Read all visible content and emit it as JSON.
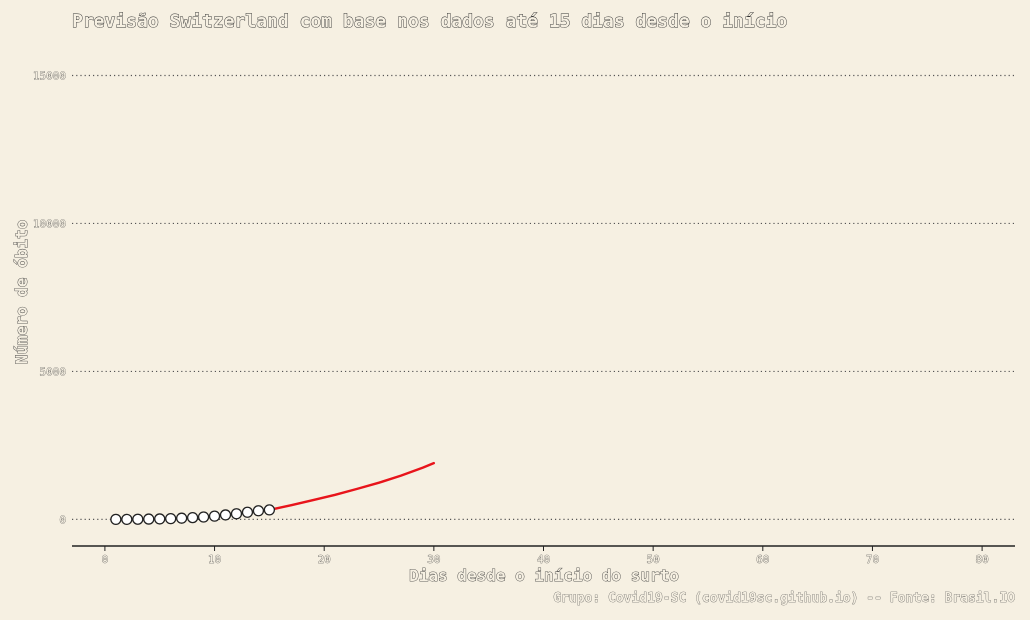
{
  "chart_data": {
    "type": "line",
    "title": "Previsão Switzerland com base nos dados até 15 dias desde o início",
    "xlabel": "Dias desde o início do surto",
    "ylabel": "Número de óbito",
    "caption": "Grupo: Covid19-SC (covid19sc.github.io) -- Fonte: Brasil.IO",
    "xlim": [
      -3,
      83
    ],
    "ylim": [
      -900,
      16200
    ],
    "x_ticks": [
      0,
      10,
      20,
      30,
      40,
      50,
      60,
      70,
      80
    ],
    "y_ticks": [
      0,
      5000,
      10000,
      15000
    ],
    "grid": "horizontal-dotted",
    "legend": "none",
    "series": [
      {
        "kind": "points",
        "color": "#222222",
        "x": [
          1,
          2,
          3,
          4,
          5,
          6,
          7,
          8,
          9,
          10,
          11,
          12,
          13,
          14,
          15
        ],
        "y": [
          0,
          0,
          5,
          10,
          15,
          25,
          40,
          60,
          80,
          110,
          150,
          190,
          240,
          290,
          320
        ]
      },
      {
        "kind": "line",
        "color": "#e8141b",
        "x": [
          15,
          17,
          19,
          21,
          23,
          25,
          27,
          29,
          30
        ],
        "y": [
          320,
          480,
          650,
          830,
          1030,
          1240,
          1480,
          1750,
          1900
        ]
      }
    ]
  }
}
